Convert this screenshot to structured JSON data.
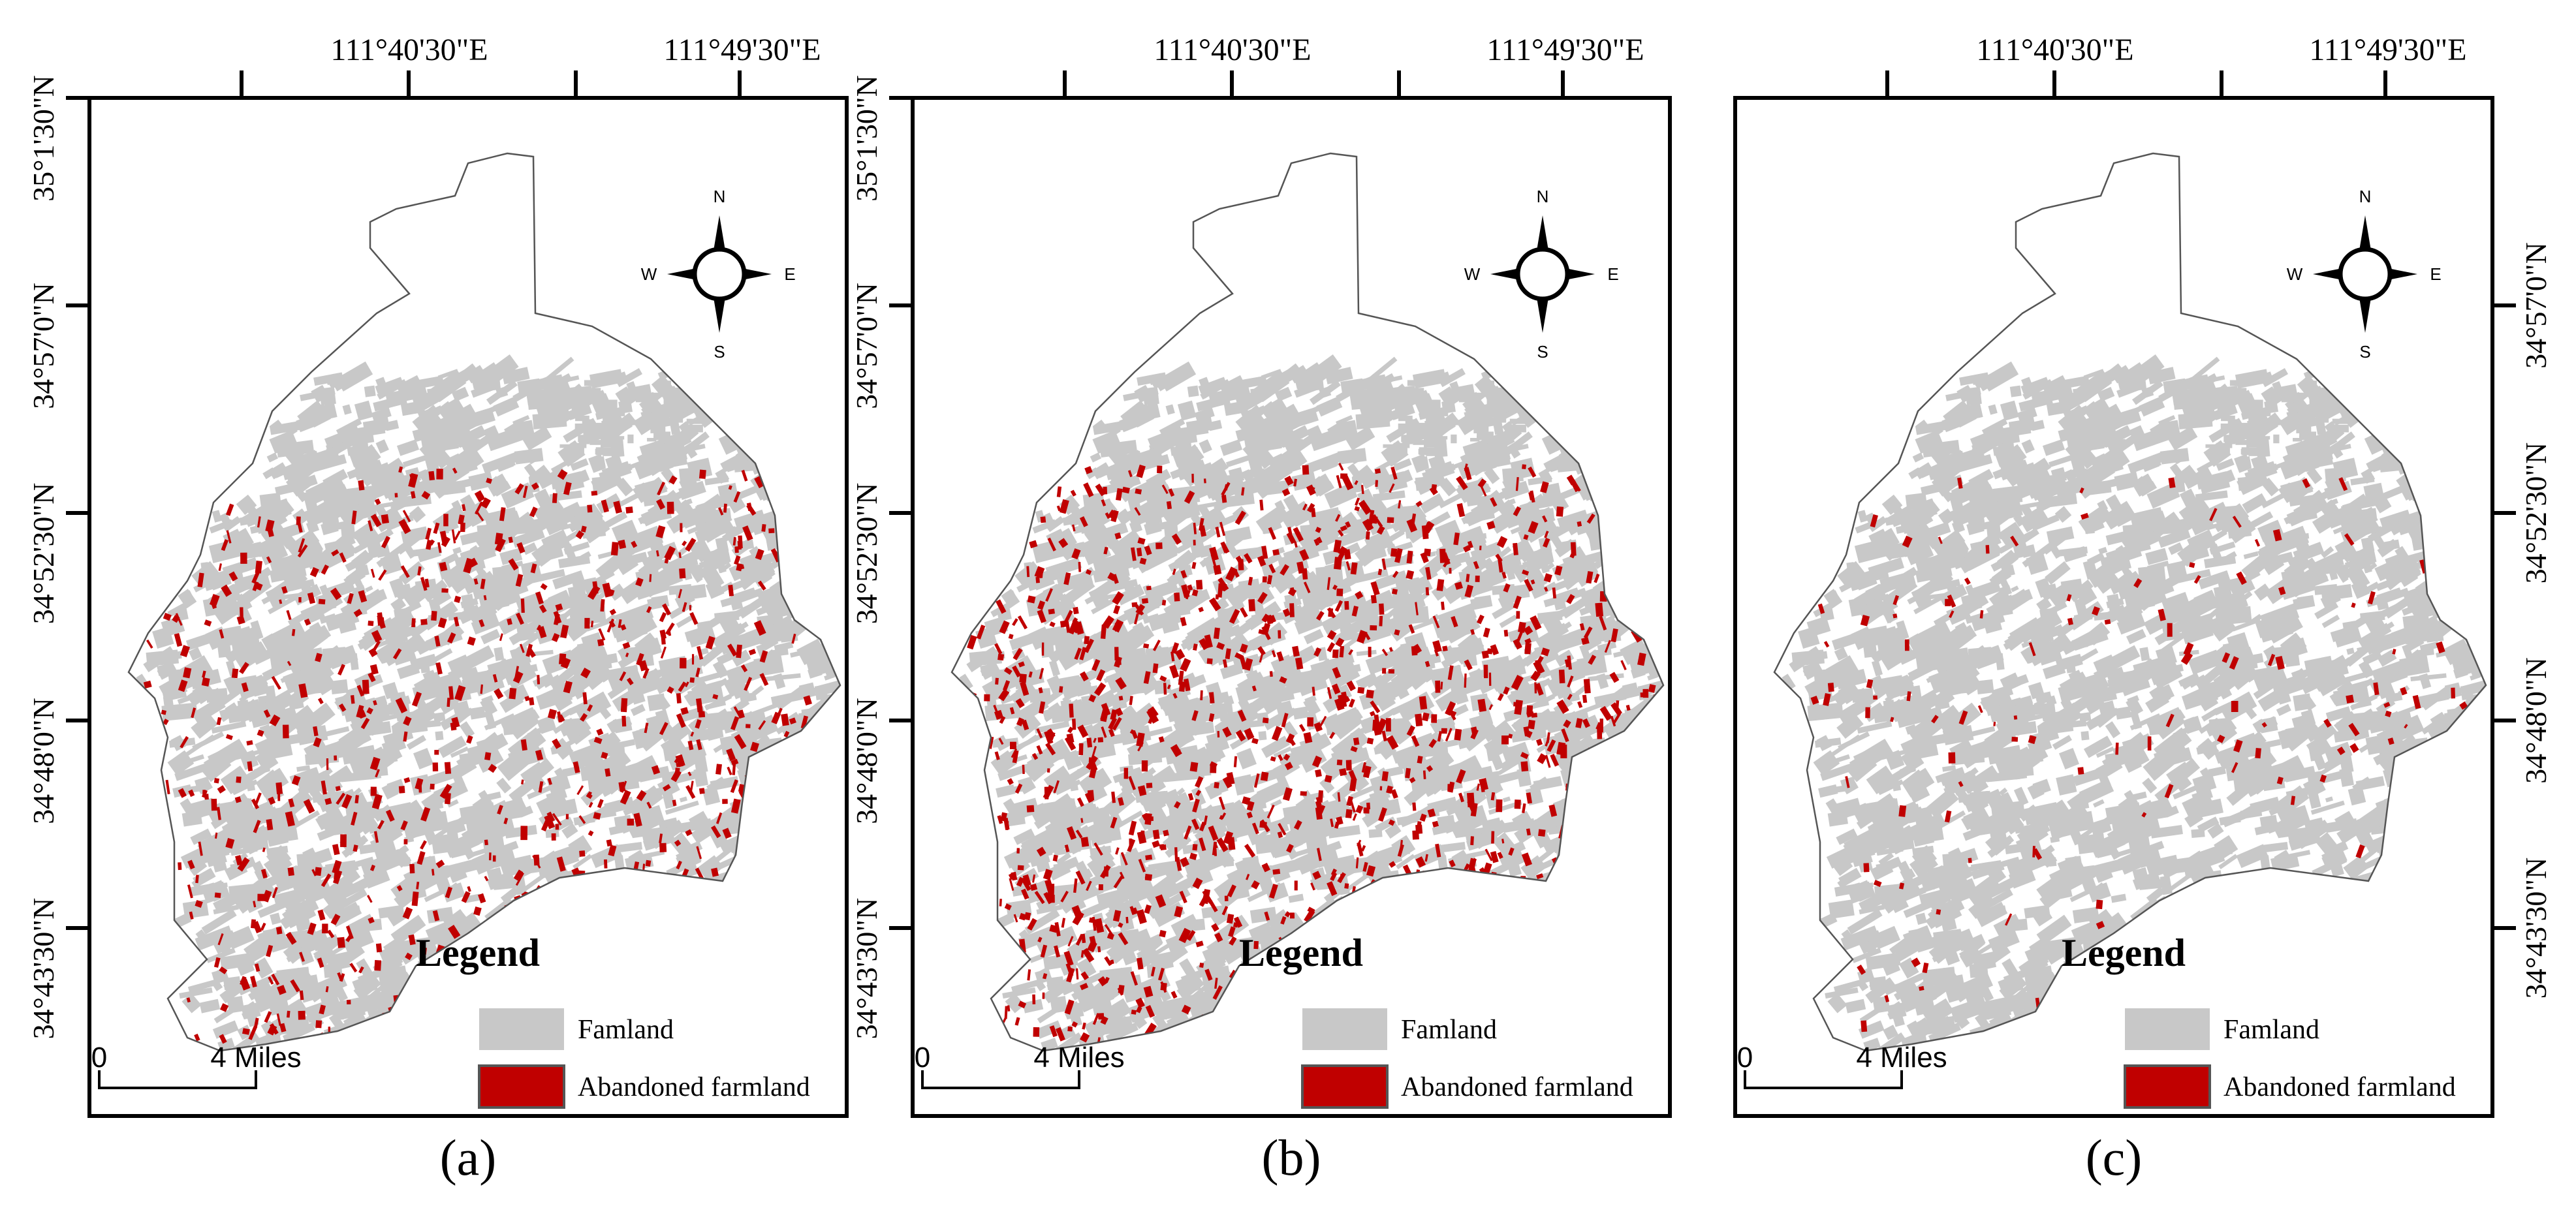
{
  "panels": [
    {
      "caption": "(a)",
      "top_lon_labels": [
        "111°40'30\"E",
        "111°49'30\"E"
      ],
      "lat_labels": [
        "35°1'30\"N",
        "34°57'0\"N",
        "34°52'30\"N",
        "34°48'0\"N",
        "34°43'30\"N"
      ],
      "lat_side": "left",
      "abandoned_level": 0.55
    },
    {
      "caption": "(b)",
      "top_lon_labels": [
        "111°40'30\"E",
        "111°49'30\"E"
      ],
      "lat_labels": [
        "35°1'30\"N",
        "34°57'0\"N",
        "34°52'30\"N",
        "34°48'0\"N",
        "34°43'30\"N"
      ],
      "lat_side": "left",
      "abandoned_level": 0.9
    },
    {
      "caption": "(c)",
      "top_lon_labels": [
        "111°40'30\"E",
        "111°49'30\"E"
      ],
      "lat_labels": [
        "34°57'0\"N",
        "34°52'30\"N",
        "34°48'0\"N",
        "34°43'30\"N"
      ],
      "lat_side": "right",
      "abandoned_level": 0.12
    }
  ],
  "legend": {
    "title": "Legend",
    "items": [
      {
        "label": "Famland",
        "color": "#c8c8c8"
      },
      {
        "label": "Abandoned farmland",
        "color": "#c00000"
      }
    ]
  },
  "compass": {
    "n": "N",
    "s": "S",
    "e": "E",
    "w": "W"
  },
  "scale_bar": {
    "start": "0",
    "end": "4 Miles"
  },
  "colors": {
    "farmland": "#c8c8c8",
    "abandoned": "#c00000",
    "frame": "#000000",
    "boundary": "#555555"
  }
}
